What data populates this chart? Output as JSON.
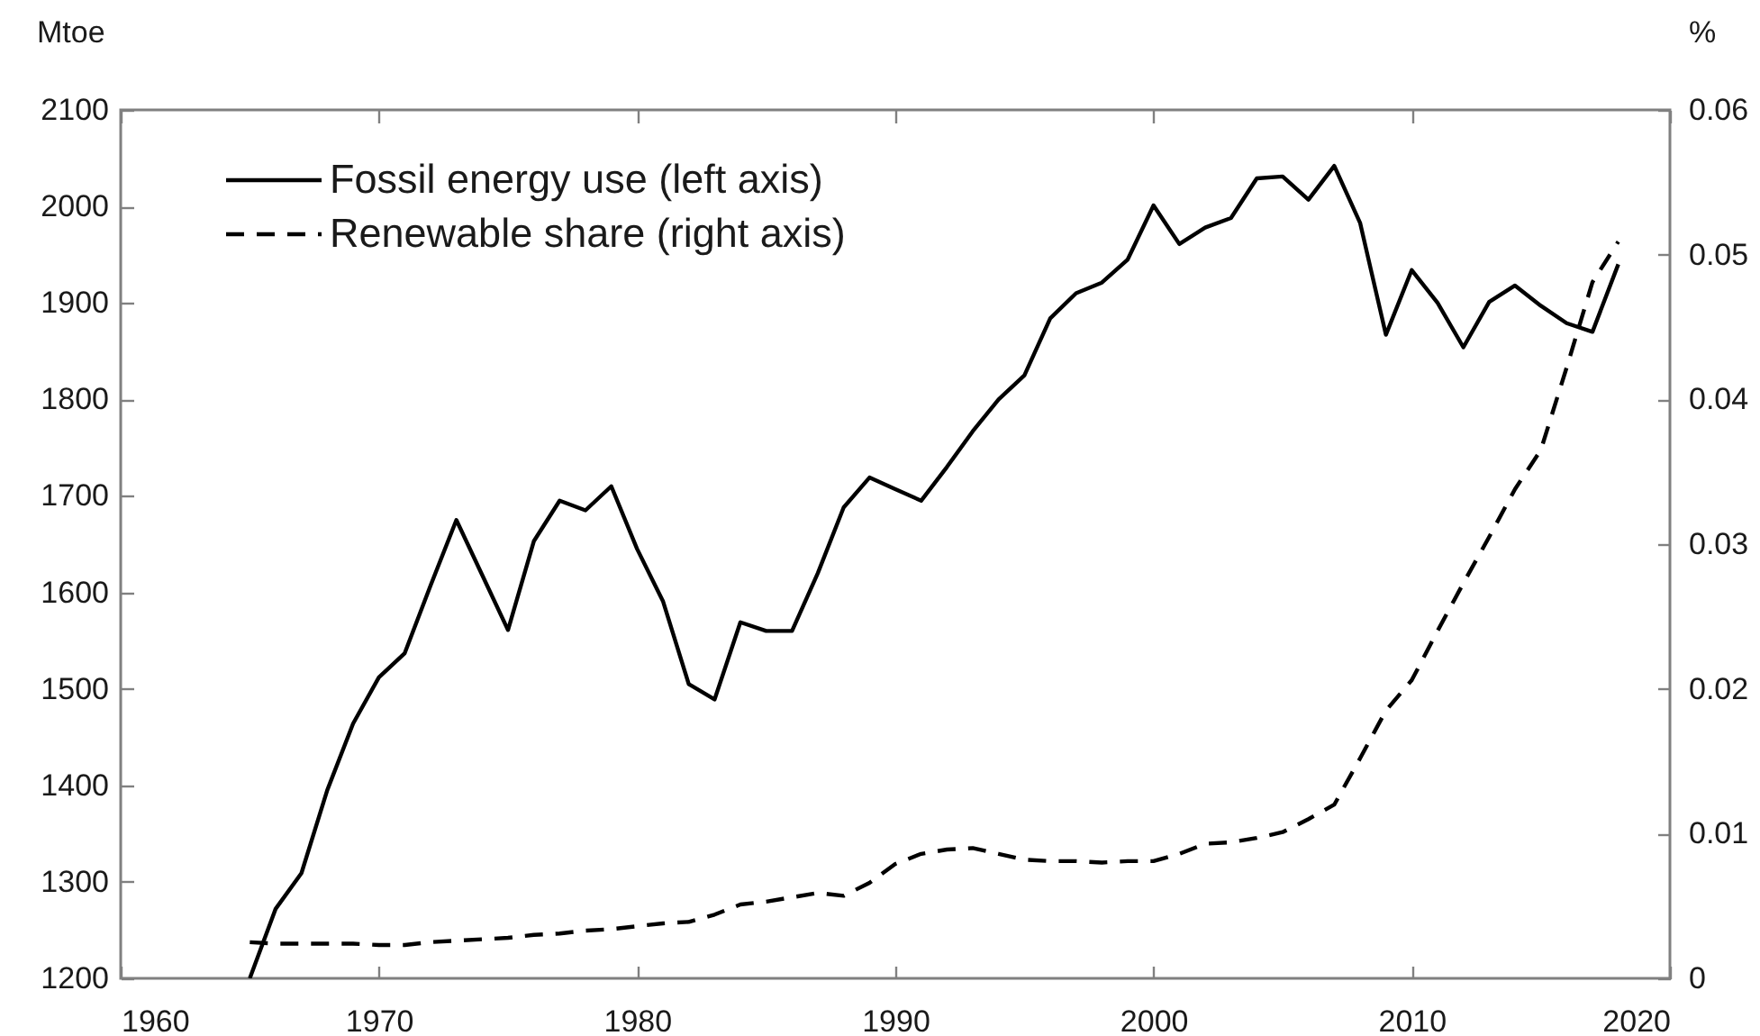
{
  "chart_data": {
    "type": "line",
    "ylabel": "Mtoe",
    "y2label": "%",
    "x": [
      1965,
      1966,
      1967,
      1968,
      1969,
      1970,
      1971,
      1972,
      1973,
      1974,
      1975,
      1976,
      1977,
      1978,
      1979,
      1980,
      1981,
      1982,
      1983,
      1984,
      1985,
      1986,
      1987,
      1988,
      1989,
      1990,
      1991,
      1992,
      1993,
      1994,
      1995,
      1996,
      1997,
      1998,
      1999,
      2000,
      2001,
      2002,
      2003,
      2004,
      2005,
      2006,
      2007,
      2008,
      2009,
      2010,
      2011,
      2012,
      2013,
      2014,
      2015,
      2016,
      2017,
      2018
    ],
    "series": [
      {
        "name": "Fossil energy use (left axis)",
        "color": "#000000",
        "line_style": "solid",
        "values": [
          1200,
          1272,
          1309,
          1395,
          1464,
          1512,
          1537,
          1607,
          1675,
          1618,
          1561,
          1653,
          1695,
          1685,
          1710,
          1645,
          1591,
          1505,
          1489,
          1569,
          1560,
          1560,
          1620,
          1688,
          1719,
          1707,
          1695,
          1730,
          1767,
          1800,
          1825,
          1884,
          1910,
          1921,
          1945,
          2001,
          1961,
          1978,
          1988,
          2029,
          2031,
          2007,
          2042,
          1983,
          1867,
          1934,
          1900,
          1854,
          1901,
          1918,
          1897,
          1879,
          1870,
          1940
        ]
      },
      {
        "name": "Renewable share (right axis)",
        "color": "#000000",
        "line_style": "dashed",
        "axis": "y2",
        "values": [
          0.0025,
          0.0024,
          0.0024,
          0.0024,
          0.0024,
          0.0023,
          0.0023,
          0.0025,
          0.0026,
          0.0027,
          0.0028,
          0.003,
          0.0031,
          0.0033,
          0.0034,
          0.0036,
          0.0038,
          0.0039,
          0.0044,
          0.0051,
          0.0053,
          0.0056,
          0.0059,
          0.0057,
          0.0066,
          0.0079,
          0.0086,
          0.0089,
          0.009,
          0.0086,
          0.0082,
          0.0081,
          0.0081,
          0.008,
          0.0081,
          0.0081,
          0.0086,
          0.0093,
          0.0094,
          0.0097,
          0.0101,
          0.011,
          0.012,
          0.0152,
          0.0185,
          0.0206,
          0.024,
          0.0273,
          0.0305,
          0.0338,
          0.0365,
          0.0422,
          0.0481,
          0.0509
        ]
      }
    ],
    "xlim": [
      1960,
      2020
    ],
    "xticks": [
      1960,
      1970,
      1980,
      1990,
      2000,
      2010,
      2020
    ],
    "ylim": [
      1200,
      2100
    ],
    "yticks": [
      1200,
      1300,
      1400,
      1500,
      1600,
      1700,
      1800,
      1900,
      2000,
      2100
    ],
    "y2lim": [
      0,
      0.06
    ],
    "y2ticks": [
      0,
      0.01,
      0.02,
      0.03,
      0.04,
      0.05,
      0.06
    ],
    "legend": "top left"
  }
}
